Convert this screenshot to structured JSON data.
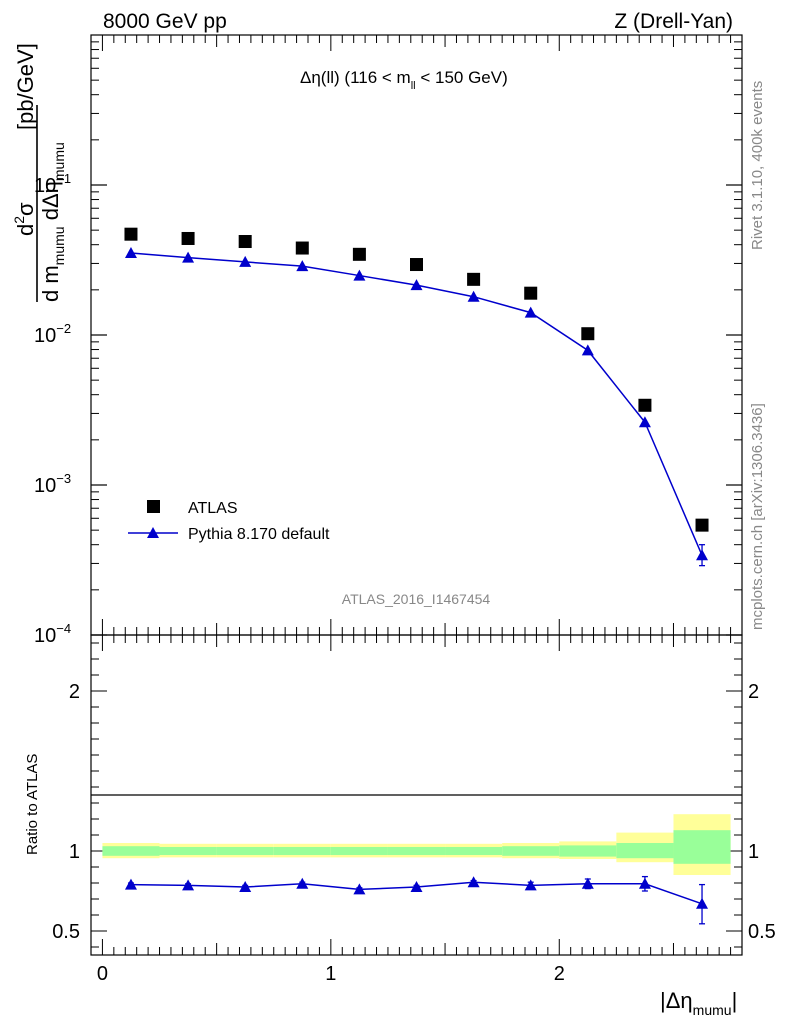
{
  "header": {
    "left": "8000 GeV pp",
    "right": "Z (Drell-Yan)"
  },
  "side": {
    "rivet": "Rivet 3.1.10,  400k events",
    "mcplots": "mcplots.cern.ch [arXiv:1306.3436]"
  },
  "chart_data": [
    {
      "type": "scatter",
      "title": "Δη(ll) (116 < m_ll < 150 GeV)",
      "watermark": "ATLAS_2016_I1467454",
      "ylabel": "d²σ / d m_mumu dΔη_mumu [pb/GeV]",
      "xlabel": "|Δη_mumu|",
      "yscale": "log",
      "ylim": [
        0.0001,
        1
      ],
      "xlim": [
        -0.05,
        2.8
      ],
      "legend_placement": "bottom-left",
      "yticks": [
        "10^-4",
        "10^-3",
        "10^-2",
        "10^-1"
      ],
      "x": [
        0.125,
        0.375,
        0.625,
        0.875,
        1.125,
        1.375,
        1.625,
        1.875,
        2.125,
        2.375,
        2.625
      ],
      "series": [
        {
          "name": "ATLAS",
          "marker": "square",
          "color": "#000000",
          "values": [
            0.047,
            0.044,
            0.042,
            0.038,
            0.0345,
            0.0295,
            0.0235,
            0.019,
            0.0102,
            0.0034,
            0.00054
          ]
        },
        {
          "name": "Pythia 8.170 default",
          "marker": "triangle",
          "color": "#0000cc",
          "values": [
            0.0352,
            0.0328,
            0.0307,
            0.0288,
            0.0249,
            0.0215,
            0.018,
            0.0141,
            0.0079,
            0.00262,
            0.00034
          ],
          "err_high": [
            0.0353,
            0.0329,
            0.0308,
            0.0289,
            0.025,
            0.0216,
            0.0181,
            0.0142,
            0.008,
            0.00268,
            0.0004
          ],
          "err_low": [
            0.0351,
            0.0327,
            0.0306,
            0.0287,
            0.0248,
            0.0214,
            0.0179,
            0.014,
            0.0078,
            0.00256,
            0.00029
          ]
        }
      ]
    },
    {
      "type": "line",
      "ylabel": "Ratio to ATLAS",
      "xlabel": "|Δη_mumu|",
      "ylim": [
        0.35,
        2.35
      ],
      "xlim": [
        -0.05,
        2.8
      ],
      "yticks": [
        "0.5",
        "1",
        "2"
      ],
      "xticks": [
        "0",
        "1",
        "2"
      ],
      "bin_edges": [
        0,
        0.25,
        0.5,
        0.75,
        1.0,
        1.25,
        1.5,
        1.75,
        2.0,
        2.25,
        2.5,
        2.75
      ],
      "band_inner": [
        [
          0.97,
          1.03
        ],
        [
          0.975,
          1.025
        ],
        [
          0.975,
          1.025
        ],
        [
          0.975,
          1.025
        ],
        [
          0.975,
          1.025
        ],
        [
          0.975,
          1.025
        ],
        [
          0.975,
          1.025
        ],
        [
          0.97,
          1.03
        ],
        [
          0.965,
          1.035
        ],
        [
          0.955,
          1.05
        ],
        [
          0.92,
          1.13
        ]
      ],
      "band_outer": [
        [
          0.955,
          1.05
        ],
        [
          0.96,
          1.045
        ],
        [
          0.96,
          1.045
        ],
        [
          0.96,
          1.045
        ],
        [
          0.96,
          1.045
        ],
        [
          0.96,
          1.045
        ],
        [
          0.96,
          1.045
        ],
        [
          0.955,
          1.05
        ],
        [
          0.95,
          1.06
        ],
        [
          0.93,
          1.115
        ],
        [
          0.85,
          1.23
        ]
      ],
      "series": [
        {
          "name": "Pythia 8.170 default",
          "color": "#0000cc",
          "values": [
            0.79,
            0.785,
            0.775,
            0.795,
            0.76,
            0.775,
            0.805,
            0.785,
            0.795,
            0.795,
            0.67
          ],
          "err_high": [
            0.8,
            0.795,
            0.785,
            0.805,
            0.77,
            0.785,
            0.815,
            0.805,
            0.825,
            0.84,
            0.79
          ],
          "err_low": [
            0.78,
            0.775,
            0.765,
            0.785,
            0.75,
            0.765,
            0.795,
            0.765,
            0.765,
            0.75,
            0.545
          ]
        }
      ]
    }
  ]
}
